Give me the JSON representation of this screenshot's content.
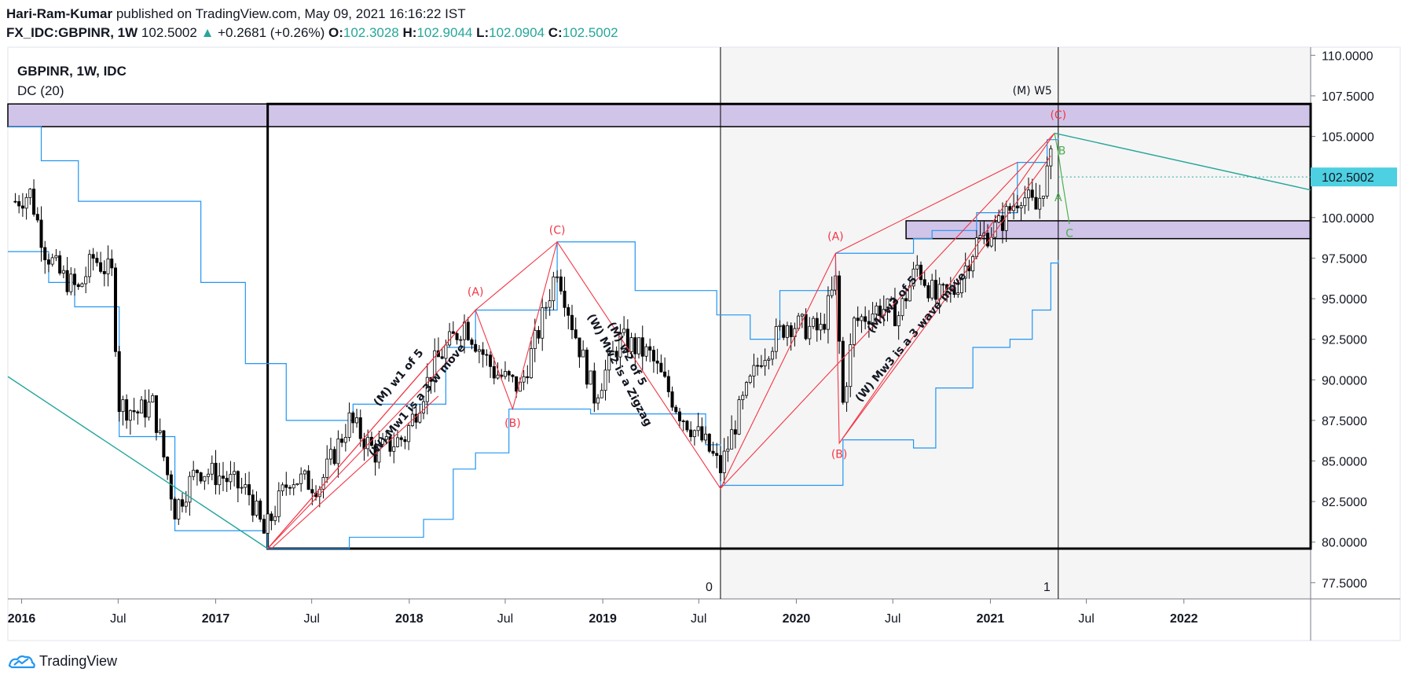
{
  "header": {
    "author": "Hari-Ram-Kumar",
    "published": " published on TradingView.com, May 09, 2021 16:16:22 IST",
    "symbol": "FX_IDC:GBPINR, 1W",
    "last": "102.5002",
    "change": "+0.2681 (+0.26%)",
    "o_label": "O:",
    "o": "102.3028",
    "h_label": "H:",
    "h": "102.9044",
    "l_label": "L:",
    "l": "102.0904",
    "c_label": "C:",
    "c": "102.5002"
  },
  "legend": {
    "symbol": "GBPINR, 1W, IDC",
    "indicator": "DC (20)"
  },
  "footer": {
    "brand": "TradingView"
  },
  "colors": {
    "up": "#26a69a",
    "candle": "#000000",
    "donchian": "#2196f3",
    "zigzag": "#f23645",
    "zone": "#d1c4e9",
    "trend": "#26a69a",
    "projection": "#4caf50"
  },
  "chart_data": {
    "type": "candlestick",
    "y_axis_ticks": [
      "110.0000",
      "107.5000",
      "105.0000",
      "102.5000",
      "100.0000",
      "97.5000",
      "95.0000",
      "92.5000",
      "90.0000",
      "87.5000",
      "85.0000",
      "82.5000",
      "80.0000",
      "77.5000"
    ],
    "ylim": [
      76.5,
      110.5
    ],
    "price_label": "102.5002",
    "x_axis_ticks": [
      "2016",
      "Jul",
      "2017",
      "Jul",
      "2018",
      "Jul",
      "2019",
      "Jul",
      "2020",
      "Jul",
      "2021",
      "Jul",
      "2022"
    ],
    "xlim": [
      "2015-12-06",
      "2022-08-28"
    ],
    "candle_series": {
      "start": "2015-12-20",
      "weeks": 280,
      "anchors": [
        [
          "2015-12-20",
          101.0
        ],
        [
          "2016-01-17",
          101.5
        ],
        [
          "2016-02-14",
          98.0
        ],
        [
          "2016-03-13",
          96.5
        ],
        [
          "2016-04-17",
          95.5
        ],
        [
          "2016-05-15",
          97.5
        ],
        [
          "2016-06-19",
          96.5
        ],
        [
          "2016-07-03",
          88.5
        ],
        [
          "2016-08-07",
          88.0
        ],
        [
          "2016-09-04",
          88.5
        ],
        [
          "2016-10-16",
          82.0
        ],
        [
          "2016-11-27",
          84.5
        ],
        [
          "2017-01-15",
          84.0
        ],
        [
          "2017-03-05",
          83.0
        ],
        [
          "2017-04-02",
          80.5
        ],
        [
          "2017-05-21",
          84.0
        ],
        [
          "2017-07-16",
          83.5
        ],
        [
          "2017-09-10",
          87.5
        ],
        [
          "2017-10-29",
          85.5
        ],
        [
          "2017-12-24",
          86.5
        ],
        [
          "2018-02-18",
          91.0
        ],
        [
          "2018-04-15",
          93.5
        ],
        [
          "2018-06-10",
          90.5
        ],
        [
          "2018-07-29",
          89.5
        ],
        [
          "2018-09-02",
          93.0
        ],
        [
          "2018-10-07",
          97.0
        ],
        [
          "2018-11-04",
          93.5
        ],
        [
          "2018-12-16",
          89.0
        ],
        [
          "2019-02-03",
          92.5
        ],
        [
          "2019-03-31",
          91.5
        ],
        [
          "2019-05-26",
          88.0
        ],
        [
          "2019-07-14",
          86.0
        ],
        [
          "2019-08-11",
          84.5
        ],
        [
          "2019-09-15",
          88.0
        ],
        [
          "2019-10-27",
          91.5
        ],
        [
          "2019-12-15",
          93.5
        ],
        [
          "2020-02-16",
          93.0
        ],
        [
          "2020-03-15",
          96.0
        ],
        [
          "2020-03-29",
          88.5
        ],
        [
          "2020-04-19",
          93.5
        ],
        [
          "2020-06-07",
          94.5
        ],
        [
          "2020-07-12",
          94.0
        ],
        [
          "2020-08-16",
          97.0
        ],
        [
          "2020-09-20",
          95.0
        ],
        [
          "2020-10-25",
          95.5
        ],
        [
          "2020-12-06",
          98.5
        ],
        [
          "2021-01-17",
          99.5
        ],
        [
          "2021-02-28",
          101.5
        ],
        [
          "2021-03-28",
          100.5
        ],
        [
          "2021-04-25",
          103.5
        ],
        [
          "2021-05-09",
          102.5
        ]
      ]
    },
    "donchian_upper": [
      [
        "2015-12-06",
        105.6
      ],
      [
        "2016-01-10",
        105.6
      ],
      [
        "2016-02-07",
        103.5
      ],
      [
        "2016-04-10",
        103.5
      ],
      [
        "2016-04-17",
        101.0
      ],
      [
        "2016-06-12",
        101.0
      ],
      [
        "2016-06-26",
        101.0
      ],
      [
        "2016-11-27",
        101.0
      ],
      [
        "2016-12-04",
        96.0
      ],
      [
        "2017-02-19",
        96.0
      ],
      [
        "2017-02-26",
        91.0
      ],
      [
        "2017-05-07",
        91.0
      ],
      [
        "2017-05-14",
        87.5
      ],
      [
        "2017-09-10",
        87.5
      ],
      [
        "2017-09-17",
        88.5
      ],
      [
        "2018-03-04",
        88.5
      ],
      [
        "2018-03-11",
        92.0
      ],
      [
        "2018-05-06",
        94.3
      ],
      [
        "2018-10-07",
        98.5
      ],
      [
        "2019-02-24",
        98.5
      ],
      [
        "2019-03-03",
        95.5
      ],
      [
        "2019-07-28",
        95.5
      ],
      [
        "2019-08-04",
        94.0
      ],
      [
        "2019-09-29",
        94.0
      ],
      [
        "2019-10-06",
        92.5
      ],
      [
        "2019-12-01",
        95.5
      ],
      [
        "2020-03-15",
        97.8
      ],
      [
        "2020-08-02",
        97.8
      ],
      [
        "2020-08-09",
        98.7
      ],
      [
        "2020-09-13",
        99.2
      ],
      [
        "2020-12-06",
        100.3
      ],
      [
        "2021-02-21",
        103.4
      ],
      [
        "2021-04-18",
        104.8
      ],
      [
        "2021-05-09",
        104.9
      ]
    ],
    "donchian_lower": [
      [
        "2015-12-06",
        97.9
      ],
      [
        "2016-02-21",
        96.0
      ],
      [
        "2016-04-10",
        94.5
      ],
      [
        "2016-06-26",
        94.5
      ],
      [
        "2016-07-03",
        86.5
      ],
      [
        "2016-10-09",
        86.5
      ],
      [
        "2016-10-16",
        80.7
      ],
      [
        "2017-04-02",
        80.7
      ],
      [
        "2017-04-09",
        79.6
      ],
      [
        "2017-09-03",
        79.6
      ],
      [
        "2017-09-10",
        80.3
      ],
      [
        "2018-01-28",
        81.4
      ],
      [
        "2018-03-25",
        84.5
      ],
      [
        "2018-05-06",
        85.5
      ],
      [
        "2018-07-08",
        88.2
      ],
      [
        "2018-12-02",
        88.2
      ],
      [
        "2018-12-09",
        87.9
      ],
      [
        "2019-06-30",
        87.9
      ],
      [
        "2019-07-14",
        86.0
      ],
      [
        "2019-08-11",
        83.5
      ],
      [
        "2020-03-15",
        83.5
      ],
      [
        "2020-03-29",
        86.3
      ],
      [
        "2020-06-28",
        86.3
      ],
      [
        "2020-08-09",
        85.8
      ],
      [
        "2020-09-20",
        89.5
      ],
      [
        "2020-11-29",
        92.0
      ],
      [
        "2021-02-07",
        92.5
      ],
      [
        "2021-03-21",
        94.3
      ],
      [
        "2021-04-25",
        97.2
      ],
      [
        "2021-05-09",
        97.4
      ]
    ],
    "zones": [
      {
        "from": "2015-12-06",
        "to": "2022-08-28",
        "low": 105.6,
        "high": 107.0
      },
      {
        "from": "2020-07-26",
        "to": "2022-08-28",
        "low": 98.7,
        "high": 99.8
      }
    ],
    "box": {
      "from": "2017-04-09",
      "to": "2022-08-28",
      "low": 79.6,
      "high": 107.0
    },
    "shaded_region": {
      "from": "2019-08-11",
      "to": "2022-08-28"
    },
    "vertical_lines": [
      {
        "date": "2019-08-11",
        "label": "0"
      },
      {
        "date": "2021-05-09",
        "label": "1"
      }
    ],
    "trend_lines": [
      {
        "from": [
          "2015-12-06",
          90.2
        ],
        "to": [
          "2017-04-09",
          79.6
        ],
        "color": "#26a69a"
      },
      {
        "from": [
          "2021-05-02",
          105.2
        ],
        "to": [
          "2022-08-28",
          101.7
        ],
        "color": "#26a69a"
      }
    ],
    "zigzag_labels": [
      {
        "text": "(A)",
        "date": "2018-05-06",
        "price": 95.2
      },
      {
        "text": "(B)",
        "date": "2018-07-15",
        "price": 87.1
      },
      {
        "text": "(C)",
        "date": "2018-10-07",
        "price": 99.0
      },
      {
        "text": "(A)",
        "date": "2020-03-15",
        "price": 98.6
      },
      {
        "text": "(B)",
        "date": "2020-03-22",
        "price": 85.2
      },
      {
        "text": "(C)",
        "date": "2021-05-09",
        "price": 106.1
      }
    ],
    "wave_labels": [
      {
        "text": "(M) W5",
        "date": "2021-03-21",
        "price": 107.6
      },
      {
        "text": "(M) w1 of 5",
        "date": "2017-12-17",
        "price": 90.0
      },
      {
        "text": "(W) Mw1 is a 3 w move",
        "date": "2018-01-21",
        "price": 88.6
      },
      {
        "text": "(W) Mw2 is a Zigzag",
        "date": "2019-01-27",
        "price": 90.5
      },
      {
        "text": "(M) w2 of 5",
        "date": "2019-02-10",
        "price": 91.5
      },
      {
        "text": "(M) w3 of 5",
        "date": "2020-07-05",
        "price": 94.5
      },
      {
        "text": "(W) Mw3 is a 3 wave move",
        "date": "2020-08-09",
        "price": 92.5
      }
    ],
    "projection_labels": [
      {
        "text": "B",
        "date": "2021-05-16",
        "price": 103.9
      },
      {
        "text": "A",
        "date": "2021-05-09",
        "price": 101.0
      },
      {
        "text": "C",
        "date": "2021-05-30",
        "price": 98.8
      }
    ]
  }
}
